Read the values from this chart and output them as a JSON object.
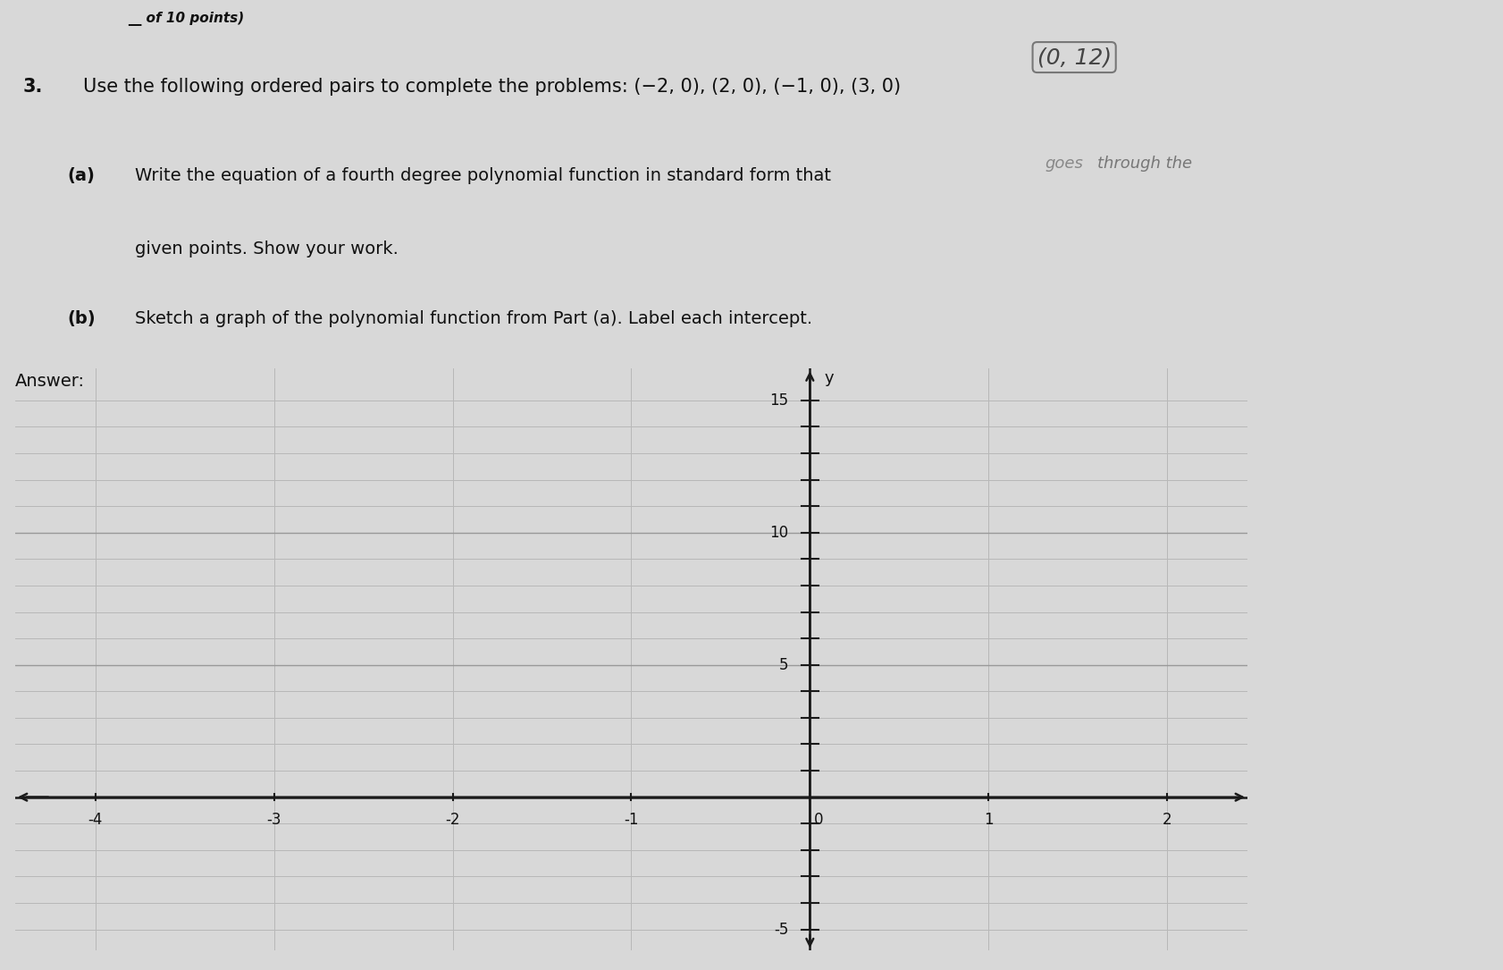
{
  "background_color": "#d8d8d8",
  "paper_color": "#e0dede",
  "text_color": "#111111",
  "title_line1": "of 10 points)",
  "question_number": "3.",
  "question_text": "Use the following ordered pairs to complete the problems: (−2, 0), (2, 0), (−1, 0), (3, 0)",
  "handwritten_annotation": "(0, 12)",
  "handwritten_text2": "goes through the",
  "handwritten_goes": "goes",
  "part_a_label": "(a)",
  "part_a_text1": "Write the equation of a fourth degree polynomial function in standard form that",
  "part_a_text2": "given points. Show your work.",
  "part_b_label": "(b)",
  "part_b_text": "Sketch a graph of the polynomial function from Part (a). Label each intercept.",
  "answer_label": "Answer:",
  "grid_x_min": -4,
  "grid_x_max": 2,
  "grid_y_min": -5,
  "grid_y_max": 15,
  "x_tick_labels": [
    -4,
    -3,
    -2,
    -1,
    0,
    1,
    2
  ],
  "y_tick_labels": [
    -5,
    5,
    10,
    15
  ],
  "axis_label_y": "y",
  "grid_color": "#b8b8b8",
  "axis_color": "#1a1a1a",
  "label_fontsize": 12,
  "text_fontsize_header": 11,
  "text_fontsize_question": 15,
  "text_fontsize_main": 14
}
